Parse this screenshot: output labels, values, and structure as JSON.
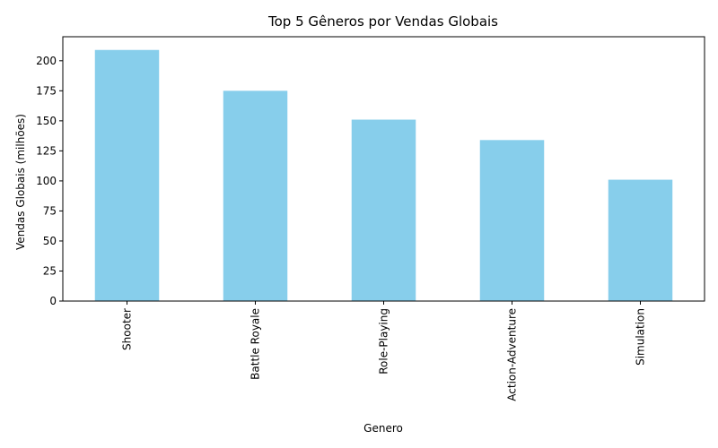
{
  "chart_data": {
    "type": "bar",
    "title": "Top 5 Gêneros por Vendas Globais",
    "xlabel": "Genero",
    "ylabel": "Vendas Globais (milhões)",
    "categories": [
      "Shooter",
      "Battle Royale",
      "Role-Playing",
      "Action-Adventure",
      "Simulation"
    ],
    "values": [
      209,
      175,
      151,
      134,
      101
    ],
    "ylim": [
      0,
      220
    ],
    "yticks": [
      0,
      25,
      50,
      75,
      100,
      125,
      150,
      175,
      200
    ],
    "bar_color": "#87ceeb",
    "grid": false,
    "legend": "none"
  }
}
